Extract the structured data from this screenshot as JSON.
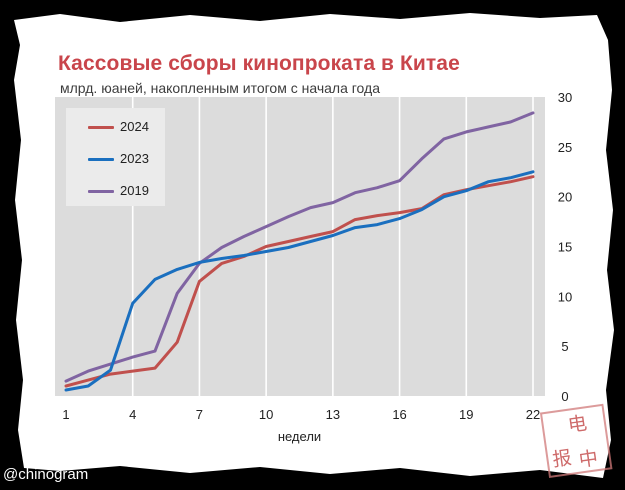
{
  "title": "Кассовые сборы кинопроката в Китае",
  "subtitle": "млрд. юаней, накопленным итогом с начала года",
  "watermark": "@chinogram",
  "stamp_chars": [
    "电",
    "报",
    "中"
  ],
  "colors": {
    "background": "#000000",
    "paper": "#ffffff",
    "plot_bg": "#dcdcdc",
    "title": "#c9454b",
    "grid": "#ffffff"
  },
  "chart_data": {
    "type": "line",
    "title": "Кассовые сборы кинопроката в Китае",
    "subtitle": "млрд. юаней, накопленным итогом с начала года",
    "xlabel": "недели",
    "ylabel": "",
    "x": [
      1,
      2,
      3,
      4,
      5,
      6,
      7,
      8,
      9,
      10,
      11,
      12,
      13,
      14,
      15,
      16,
      17,
      18,
      19,
      20,
      21,
      22
    ],
    "xticks": [
      1,
      4,
      7,
      10,
      13,
      16,
      19,
      22
    ],
    "xlim": [
      1,
      22
    ],
    "ylim": [
      0,
      30
    ],
    "yticks": [
      0,
      5,
      10,
      15,
      20,
      25,
      30
    ],
    "y_axis_position": "right",
    "grid": "vertical",
    "legend_position": "top-left",
    "series": [
      {
        "name": "2024",
        "color": "#c0504d",
        "values": [
          1.0,
          1.6,
          2.2,
          2.5,
          2.8,
          5.4,
          11.5,
          13.3,
          14.0,
          15.0,
          15.5,
          16.0,
          16.5,
          17.7,
          18.1,
          18.4,
          18.8,
          20.2,
          20.7,
          21.1,
          21.5,
          22.0
        ]
      },
      {
        "name": "2023",
        "color": "#1a6fbf",
        "values": [
          0.6,
          1.0,
          2.6,
          9.3,
          11.7,
          12.7,
          13.4,
          13.8,
          14.1,
          14.5,
          14.9,
          15.5,
          16.1,
          16.9,
          17.2,
          17.8,
          18.7,
          20.0,
          20.6,
          21.5,
          21.9,
          22.5
        ]
      },
      {
        "name": "2019",
        "color": "#8064a2",
        "values": [
          1.5,
          2.5,
          3.2,
          3.9,
          4.5,
          10.3,
          13.3,
          14.9,
          16.0,
          17.0,
          18.0,
          18.9,
          19.4,
          20.4,
          20.9,
          21.6,
          23.8,
          25.8,
          26.5,
          27.0,
          27.5,
          28.4
        ]
      }
    ]
  }
}
